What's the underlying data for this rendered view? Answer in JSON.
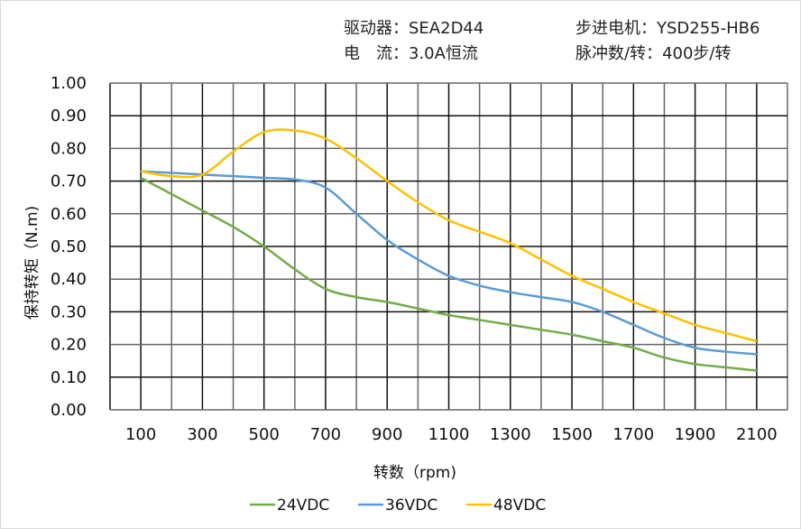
{
  "header": {
    "driver": "驱动器：SEA2D44",
    "current": "电　流：3.0A恒流",
    "motor": "步进电机：YSD255-HB6",
    "pulses": "脉冲数/转：400步/转"
  },
  "chart_data": {
    "type": "line",
    "xlabel": "转数（rpm)",
    "ylabel": "保持转矩（N.m)",
    "xlim": [
      0,
      2200
    ],
    "ylim": [
      0,
      1.0
    ],
    "grid": true,
    "legend": "bottom",
    "x_ticks": [
      "100",
      "300",
      "500",
      "700",
      "900",
      "1100",
      "1300",
      "1500",
      "1700",
      "1900",
      "2100"
    ],
    "y_ticks": [
      "0.00",
      "0.10",
      "0.20",
      "0.30",
      "0.40",
      "0.50",
      "0.60",
      "0.70",
      "0.80",
      "0.90",
      "1.00"
    ],
    "x": [
      100,
      200,
      300,
      400,
      500,
      600,
      700,
      800,
      900,
      1000,
      1100,
      1200,
      1300,
      1400,
      1500,
      1600,
      1700,
      1800,
      1900,
      2000,
      2100
    ],
    "series": [
      {
        "name": "24VDC",
        "color": "#70ad47",
        "values": [
          0.71,
          0.66,
          0.61,
          0.56,
          0.5,
          0.43,
          0.37,
          0.345,
          0.33,
          0.31,
          0.29,
          0.275,
          0.26,
          0.245,
          0.23,
          0.21,
          0.19,
          0.16,
          0.14,
          0.13,
          0.12
        ]
      },
      {
        "name": "36VDC",
        "color": "#5b9bd5",
        "values": [
          0.73,
          0.725,
          0.72,
          0.715,
          0.71,
          0.705,
          0.68,
          0.6,
          0.52,
          0.46,
          0.41,
          0.38,
          0.36,
          0.345,
          0.33,
          0.3,
          0.26,
          0.22,
          0.19,
          0.178,
          0.17
        ]
      },
      {
        "name": "48VDC",
        "color": "#ffc000",
        "values": [
          0.73,
          0.715,
          0.72,
          0.79,
          0.85,
          0.855,
          0.83,
          0.77,
          0.7,
          0.635,
          0.58,
          0.545,
          0.51,
          0.46,
          0.41,
          0.37,
          0.33,
          0.295,
          0.26,
          0.235,
          0.21
        ]
      }
    ]
  }
}
